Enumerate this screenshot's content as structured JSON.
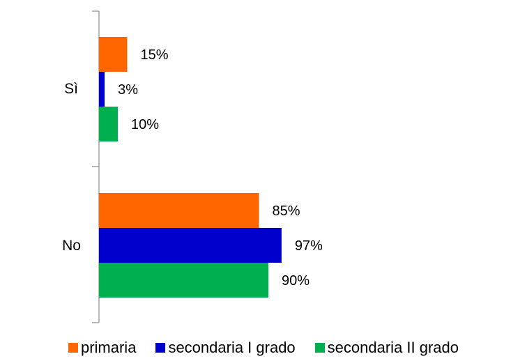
{
  "chart_data": {
    "type": "bar",
    "orientation": "horizontal",
    "categories": [
      "Sì",
      "No"
    ],
    "series": [
      {
        "name": "primaria",
        "values": [
          15,
          85
        ],
        "labels": [
          "15%",
          "85%"
        ],
        "color": "#ff6600"
      },
      {
        "name": "secondaria I grado",
        "values": [
          3,
          97
        ],
        "labels": [
          "3%",
          "97%"
        ],
        "color": "#0000cc"
      },
      {
        "name": "secondaria II grado",
        "values": [
          10,
          90
        ],
        "labels": [
          "10%",
          "90%"
        ],
        "color": "#00b050"
      }
    ],
    "title": "",
    "xlabel": "",
    "ylabel": "",
    "xlim": [
      0,
      100
    ],
    "grid": false,
    "legend_position": "bottom"
  }
}
